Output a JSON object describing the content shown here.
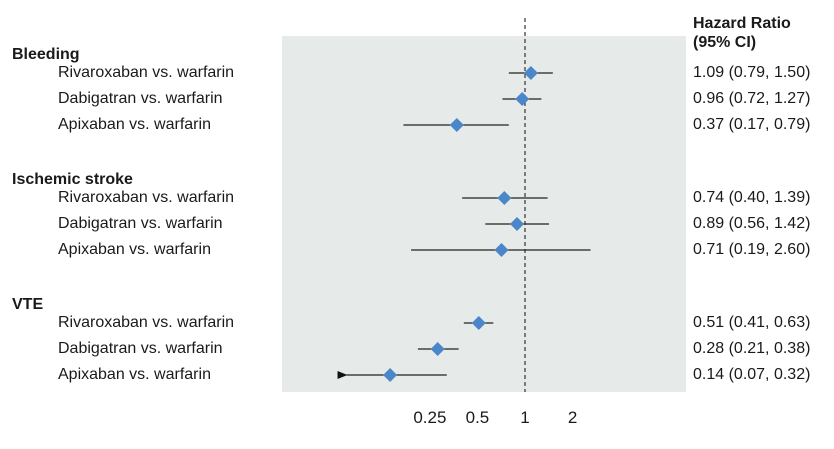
{
  "chart_data": {
    "type": "forest",
    "title": "",
    "xlabel": "",
    "x_scale": "log",
    "xlim": [
      0.06,
      5.0
    ],
    "reference_line": 1,
    "xticks": [
      0.25,
      0.5,
      1,
      2
    ],
    "xtick_labels": [
      "0.25",
      "0.5",
      "1",
      "2"
    ],
    "column_header": [
      "Hazard Ratio",
      "(95% CI)"
    ],
    "marker_color": "#4a86c8",
    "panel_color": "#e6ebea",
    "groups": [
      {
        "name": "Bleeding",
        "rows": [
          {
            "label": "Rivaroxaban vs. warfarin",
            "hr": 1.09,
            "lo": 0.79,
            "hi": 1.5,
            "text": "1.09 (0.79, 1.50)"
          },
          {
            "label": "Dabigatran vs. warfarin",
            "hr": 0.96,
            "lo": 0.72,
            "hi": 1.27,
            "text": "0.96 (0.72, 1.27)"
          },
          {
            "label": "Apixaban vs. warfarin",
            "hr": 0.37,
            "lo": 0.17,
            "hi": 0.79,
            "text": "0.37 (0.17, 0.79)"
          }
        ]
      },
      {
        "name": "Ischemic stroke",
        "rows": [
          {
            "label": "Rivaroxaban vs. warfarin",
            "hr": 0.74,
            "lo": 0.4,
            "hi": 1.39,
            "text": "0.74 (0.40, 1.39)"
          },
          {
            "label": "Dabigatran vs. warfarin",
            "hr": 0.89,
            "lo": 0.56,
            "hi": 1.42,
            "text": "0.89 (0.56, 1.42)"
          },
          {
            "label": "Apixaban vs. warfarin",
            "hr": 0.71,
            "lo": 0.19,
            "hi": 2.6,
            "text": "0.71 (0.19, 2.60)"
          }
        ]
      },
      {
        "name": "VTE",
        "rows": [
          {
            "label": "Rivaroxaban vs. warfarin",
            "hr": 0.51,
            "lo": 0.41,
            "hi": 0.63,
            "text": "0.51 (0.41, 0.63)"
          },
          {
            "label": "Dabigatran vs. warfarin",
            "hr": 0.28,
            "lo": 0.21,
            "hi": 0.38,
            "text": "0.28 (0.21, 0.38)"
          },
          {
            "label": "Apixaban vs. warfarin",
            "hr": 0.14,
            "lo": 0.07,
            "hi": 0.32,
            "text": "0.14 (0.07, 0.32)",
            "lower_truncated": true
          }
        ]
      }
    ]
  }
}
